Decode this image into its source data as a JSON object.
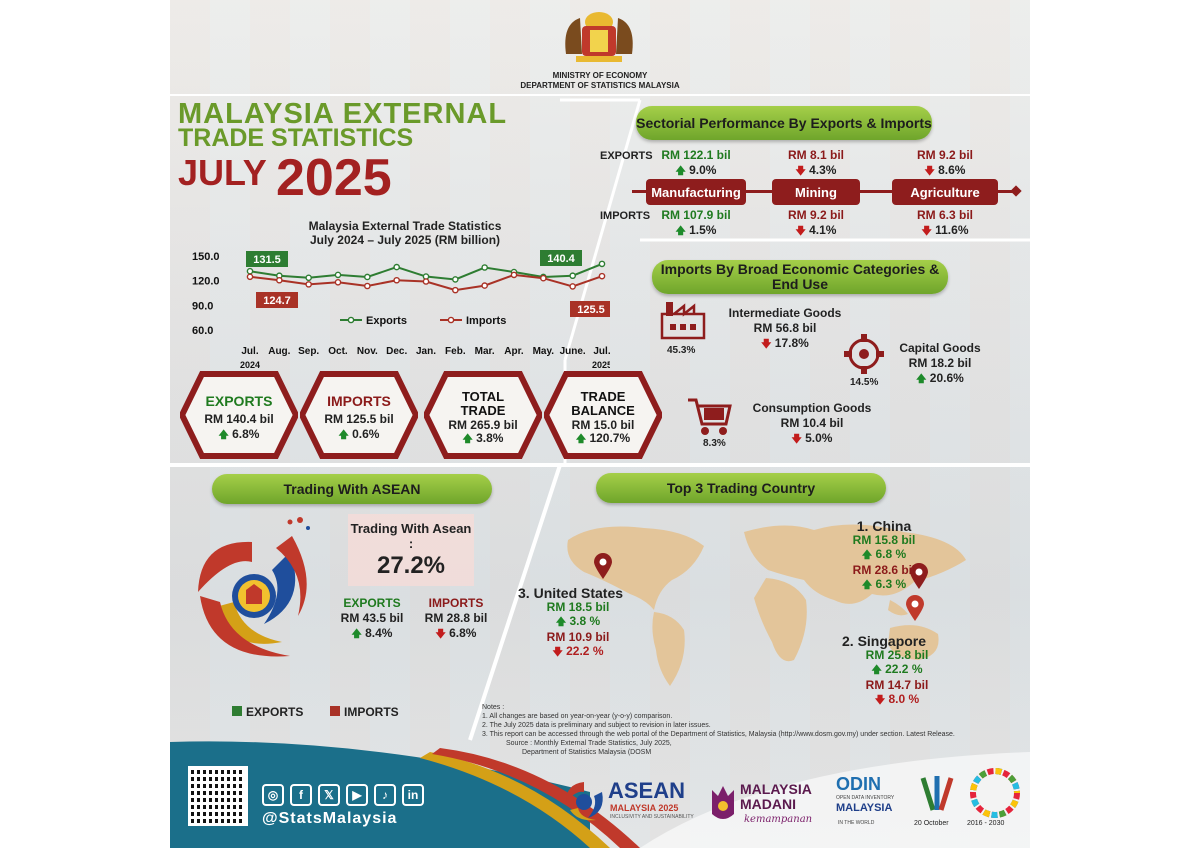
{
  "header": {
    "ministry": "MINISTRY OF ECONOMY",
    "department": "DEPARTMENT OF STATISTICS MALAYSIA",
    "title_line1": "MALAYSIA EXTERNAL",
    "title_line2": "TRADE STATISTICS",
    "month": "JULY",
    "year": "2025"
  },
  "chart_data": {
    "type": "line",
    "title": "Malaysia External Trade Statistics",
    "subtitle": "July 2024 – July 2025 (RM billion)",
    "categories": [
      "Jul.",
      "Aug.",
      "Sep.",
      "Oct.",
      "Nov.",
      "Dec.",
      "Jan.",
      "Feb.",
      "Mar.",
      "Apr.",
      "May.",
      "June.",
      "Jul."
    ],
    "category_years": [
      "2024",
      "",
      "",
      "",
      "",
      "",
      "",
      "",
      "",
      "",
      "",
      "",
      "2025"
    ],
    "series": [
      {
        "name": "Exports",
        "color": "#2e7d32",
        "values": [
          131.5,
          126.0,
          123.5,
          127.0,
          124.5,
          136.5,
          125.0,
          121.5,
          136.0,
          130.5,
          124.5,
          126.0,
          140.4
        ]
      },
      {
        "name": "Imports",
        "color": "#a93226",
        "values": [
          124.7,
          120.5,
          115.5,
          118.0,
          113.5,
          120.5,
          119.0,
          108.5,
          114.0,
          127.0,
          123.0,
          113.0,
          125.5
        ]
      }
    ],
    "yticks": [
      "150.0",
      "120.0",
      "90.0",
      "60.0"
    ],
    "ylim": [
      60,
      150
    ],
    "callouts": {
      "exports_start": "131.5",
      "imports_start": "124.7",
      "exports_end": "140.4",
      "imports_end": "125.5"
    }
  },
  "summary": [
    {
      "title": "EXPORTS",
      "value": "RM 140.4 bil",
      "change": "6.8%"
    },
    {
      "title": "IMPORTS",
      "value": "RM 125.5 bil",
      "change": "0.6%"
    },
    {
      "title": "TOTAL TRADE",
      "value": "RM 265.9 bil",
      "change": "3.8%"
    },
    {
      "title": "TRADE BALANCE",
      "value": "RM 15.0 bil",
      "change": "120.7%"
    }
  ],
  "sectorial": {
    "title": "Sectorial Performance By Exports & Imports",
    "exports_label": "EXPORTS",
    "imports_label": "IMPORTS",
    "sectors": [
      {
        "name": "Manufacturing",
        "exp_value": "RM 122.1 bil",
        "exp_change": "9.0%",
        "imp_value": "RM 107.9 bil",
        "imp_change": "1.5%"
      },
      {
        "name": "Mining",
        "exp_value": "RM 8.1 bil",
        "exp_change": "4.3%",
        "imp_value": "RM 9.2 bil",
        "imp_change": "4.1%"
      },
      {
        "name": "Agriculture",
        "exp_value": "RM 9.2 bil",
        "exp_change": "8.6%",
        "imp_value": "RM 6.3 bil",
        "imp_change": "11.6%"
      }
    ]
  },
  "imports_bec": {
    "title": "Imports By Broad Economic Categories & End Use",
    "intermediate": {
      "label": "Intermediate Goods",
      "value": "RM 56.8 bil",
      "change": "17.8%",
      "share": "45.3%"
    },
    "capital": {
      "label": "Capital Goods",
      "value": "RM 18.2 bil",
      "change": "20.6%",
      "share": "14.5%"
    },
    "consumption": {
      "label": "Consumption Goods",
      "value": "RM 10.4 bil",
      "change": "5.0%",
      "share": "8.3%"
    }
  },
  "asean": {
    "title": "Trading With ASEAN",
    "share_label": "Trading With Asean :",
    "share": "27.2%",
    "exports_label": "EXPORTS",
    "exports_value": "RM 43.5 bil",
    "exports_change": "8.4%",
    "imports_label": "IMPORTS",
    "imports_value": "RM 28.8 bil",
    "imports_change": "6.8%",
    "legend_exports": "EXPORTS",
    "legend_imports": "IMPORTS"
  },
  "top3": {
    "title": "Top 3 Trading Country",
    "china": {
      "rank": "1.",
      "name": "China",
      "exp_value": "RM 15.8 bil",
      "exp_change": "6.8 %",
      "imp_value": "RM 28.6 bil",
      "imp_change": "6.3 %"
    },
    "singapore": {
      "rank": "2.",
      "name": "Singapore",
      "exp_value": "RM 25.8 bil",
      "exp_change": "22.2 %",
      "imp_value": "RM 14.7 bil",
      "imp_change": "8.0 %"
    },
    "usa": {
      "rank": "3.",
      "name": "United States",
      "exp_value": "RM 18.5 bil",
      "exp_change": "3.8 %",
      "imp_value": "RM 10.9 bil",
      "imp_change": "22.2 %"
    }
  },
  "notes": {
    "heading": "Notes :",
    "n1": "1.       All changes are based on year-on-year (y-o-y) comparison.",
    "n2": "2. The July 2025 data is preliminary and subject to revision in later issues.",
    "n3": "3. This report can be accessed through the web portal of the Department of Statistics, Malaysia (http://www.dosm.gov.my) under section. Latest Release.",
    "source1": "Source : Monthly External Trade Statistics, July 2025,",
    "source2": "Department of Statistics Malaysia  (DOSM"
  },
  "footer": {
    "handle": "@StatsMalaysia",
    "social": [
      "◎",
      "f",
      "𝕏",
      "▶",
      "♪",
      "in"
    ],
    "asean_logo": "ASEAN",
    "asean_sub": "MALAYSIA 2025",
    "asean_tag": "INCLUSIVITY AND SUSTAINABILITY",
    "madani1": "MALAYSIA",
    "madani2": "MADANI",
    "madani3": "kemampanan",
    "odin1": "ODIN",
    "odin2": "OPEN DATA INVENTORY",
    "odin3": "MALAYSIA",
    "odin4": "IN THE WORLD",
    "wsd_date": "20 October",
    "sdg_years": "2016 - 2030",
    "colors": {
      "teal": "#1b6f8a",
      "maroon": "#8e1d1d",
      "green": "#6fa52b"
    }
  }
}
